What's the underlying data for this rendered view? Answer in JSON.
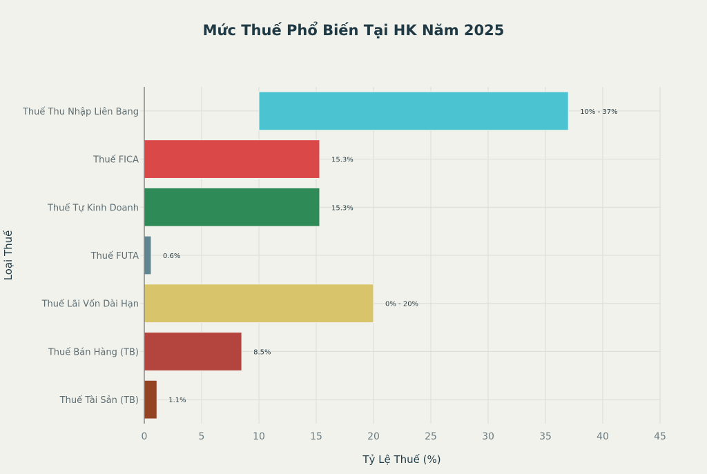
{
  "chart_data": {
    "type": "bar",
    "orientation": "horizontal",
    "title": "Mức Thuế Phổ Biến Tại HK Năm 2025",
    "xlabel": "Tỷ Lệ Thuế (%)",
    "ylabel": "Loại Thuế",
    "xlim": [
      0,
      45
    ],
    "xticks": [
      0,
      5,
      10,
      15,
      20,
      25,
      30,
      35,
      40,
      45
    ],
    "grid": true,
    "bars": [
      {
        "category": "Thuế Thu Nhập Liên Bang",
        "start": 10,
        "end": 37,
        "label": "10% - 37%",
        "color": "#4BC3D1"
      },
      {
        "category": "Thuế FICA",
        "start": 0,
        "end": 15.3,
        "label": "15.3%",
        "color": "#DB4848"
      },
      {
        "category": "Thuế Tự Kinh Doanh",
        "start": 0,
        "end": 15.3,
        "label": "15.3%",
        "color": "#2E8B57"
      },
      {
        "category": "Thuế FUTA",
        "start": 0,
        "end": 0.6,
        "label": "0.6%",
        "color": "#5F8690"
      },
      {
        "category": "Thuế Lãi Vốn Dài Hạn",
        "start": 0,
        "end": 20,
        "label": "0% - 20%",
        "color": "#D8C46A"
      },
      {
        "category": "Thuế Bán Hàng (TB)",
        "start": 0,
        "end": 8.5,
        "label": "8.5%",
        "color": "#B4443E"
      },
      {
        "category": "Thuế Tài Sản (TB)",
        "start": 0,
        "end": 1.1,
        "label": "1.1%",
        "color": "#944323"
      }
    ]
  }
}
